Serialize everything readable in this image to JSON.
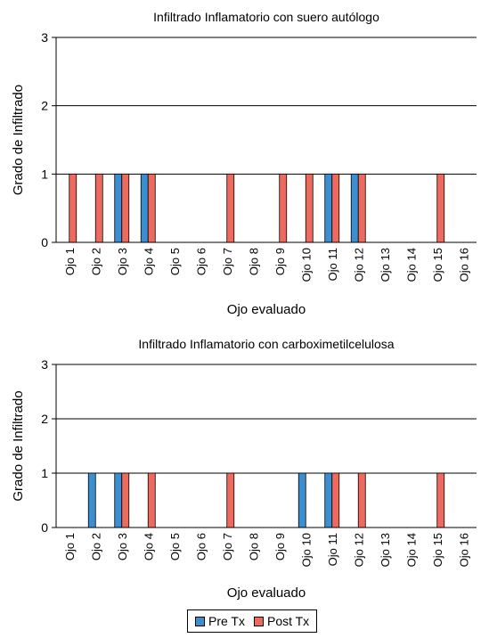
{
  "chart_data": [
    {
      "type": "bar",
      "title": "Infiltrado Inflamatorio con suero autólogo",
      "xlabel": "Ojo evaluado",
      "ylabel": "Grado de Infiltrado",
      "ylim": [
        0,
        3
      ],
      "yticks": [
        "0",
        "1",
        "2",
        "3"
      ],
      "grid": true,
      "categories": [
        "Ojo 1",
        "Ojo 2",
        "Ojo 3",
        "Ojo 4",
        "Ojo 5",
        "Ojo 6",
        "Ojo 7",
        "Ojo 8",
        "Ojo 9",
        "Ojo 10",
        "Ojo 11",
        "Ojo 12",
        "Ojo 13",
        "Ojo 14",
        "Ojo 15",
        "Ojo 16"
      ],
      "series": [
        {
          "name": "Pre Tx",
          "color": "#3b8fd0",
          "values": [
            0,
            0,
            1,
            1,
            0,
            0,
            0,
            0,
            0,
            0,
            1,
            1,
            0,
            0,
            0,
            0
          ]
        },
        {
          "name": "Post Tx",
          "color": "#ef6a5e",
          "values": [
            1,
            1,
            1,
            1,
            0,
            0,
            1,
            0,
            1,
            1,
            1,
            1,
            0,
            0,
            1,
            0
          ]
        }
      ]
    },
    {
      "type": "bar",
      "title": "Infiltrado Inflamatorio con carboximetilcelulosa",
      "xlabel": "Ojo evaluado",
      "ylabel": "Grado de Infiltrado",
      "ylim": [
        0,
        3
      ],
      "yticks": [
        "0",
        "1",
        "2",
        "3"
      ],
      "grid": true,
      "categories": [
        "Ojo 1",
        "Ojo 2",
        "Ojo 3",
        "Ojo 4",
        "Ojo 5",
        "Ojo 6",
        "Ojo 7",
        "Ojo 8",
        "Ojo 9",
        "Ojo 10",
        "Ojo 11",
        "Ojo 12",
        "Ojo 13",
        "Ojo 14",
        "Ojo 15",
        "Ojo 16"
      ],
      "series": [
        {
          "name": "Pre Tx",
          "color": "#3b8fd0",
          "values": [
            0,
            1,
            1,
            0,
            0,
            0,
            0,
            0,
            0,
            1,
            1,
            0,
            0,
            0,
            0,
            0
          ]
        },
        {
          "name": "Post Tx",
          "color": "#ef6a5e",
          "values": [
            0,
            0,
            1,
            1,
            0,
            0,
            1,
            0,
            0,
            0,
            1,
            1,
            0,
            0,
            1,
            0
          ]
        }
      ]
    }
  ],
  "legend": {
    "placement": "bottom-center",
    "items": [
      {
        "label": "Pre Tx",
        "color": "#3b8fd0"
      },
      {
        "label": "Post Tx",
        "color": "#ef6a5e"
      }
    ]
  }
}
